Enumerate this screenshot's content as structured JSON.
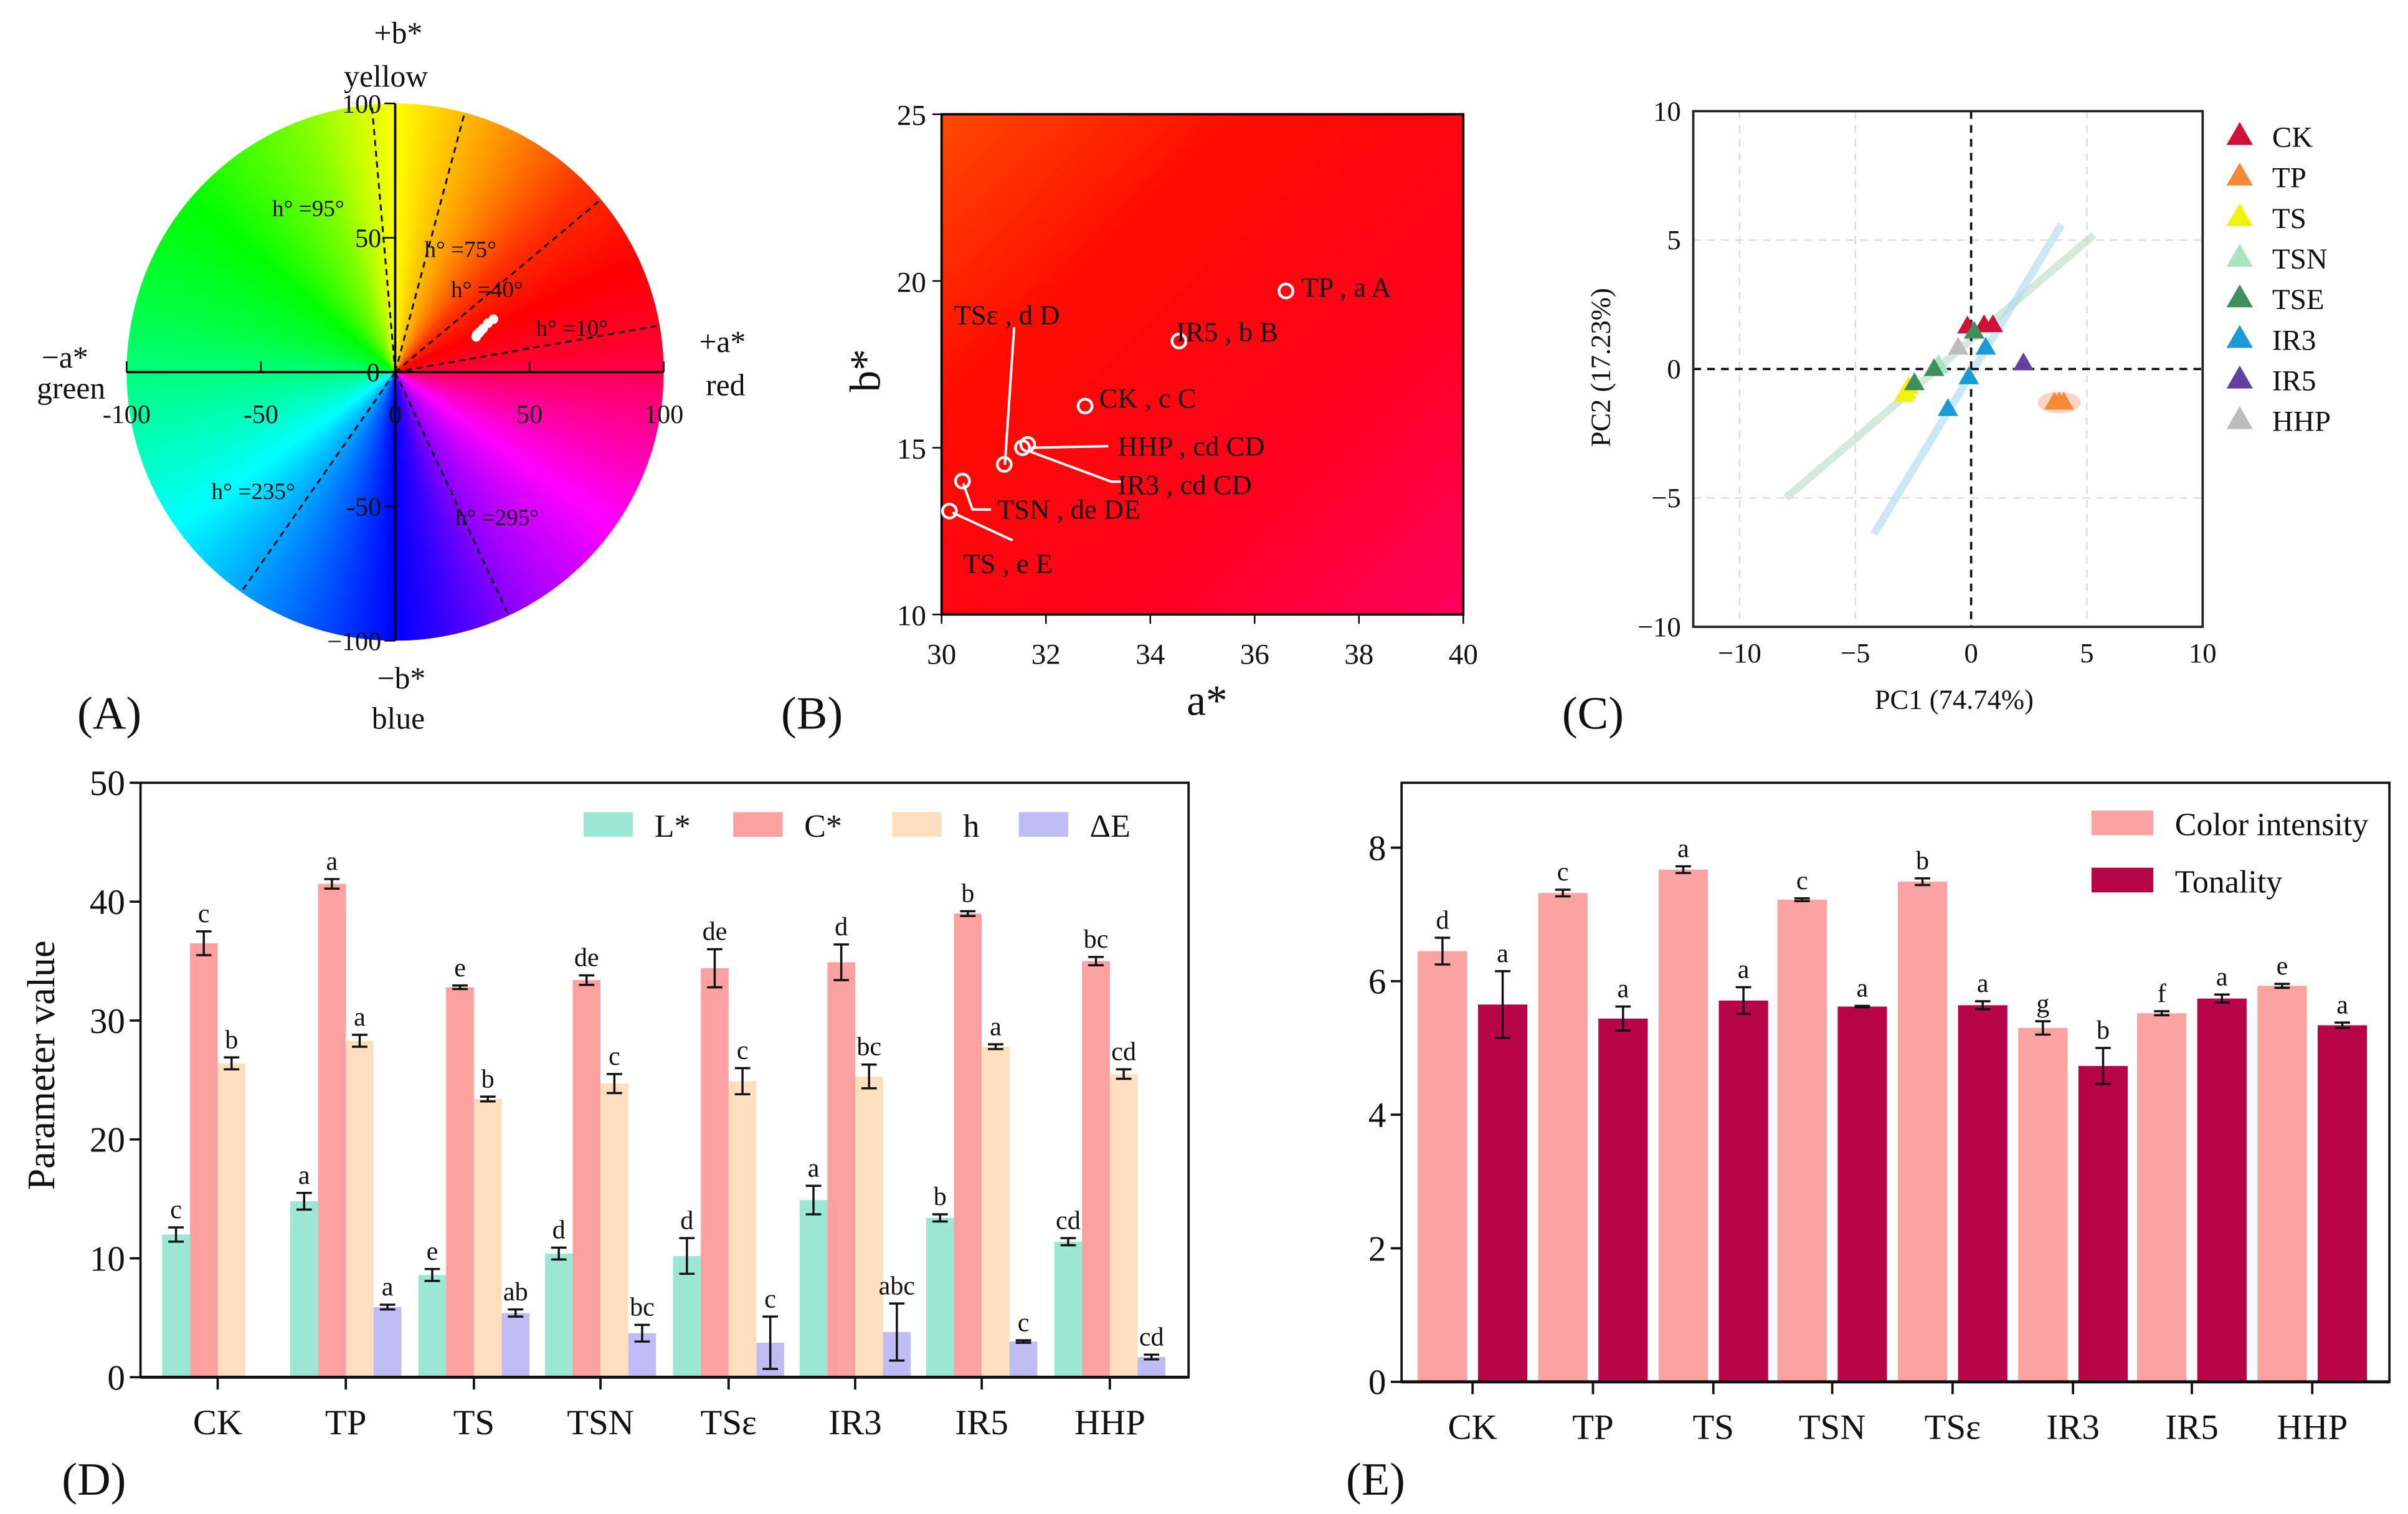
{
  "panel_labels": {
    "A": "(A)",
    "B": "(B)",
    "C": "(C)",
    "D": "(D)",
    "E": "(E)"
  },
  "chart_data": [
    {
      "type": "scatter",
      "panel": "A",
      "title": "CIELAB color wheel",
      "axis_labels": {
        "pos_b": "+b*",
        "pos_b_name": "yellow",
        "neg_a": "−a*",
        "neg_a_name": "green",
        "pos_a": "+a*",
        "pos_a_name": "red",
        "neg_b": "−b*",
        "neg_b_name": "blue"
      },
      "xlim": [
        -100,
        100
      ],
      "ylim": [
        -100,
        100
      ],
      "xticks": [
        -100,
        -50,
        0,
        50,
        100
      ],
      "yticks": [
        -100,
        -50,
        0,
        50,
        100
      ],
      "hue_lines": [
        {
          "angle": 10,
          "label": "h°  =10°"
        },
        {
          "angle": 40,
          "label": "h°  =40°"
        },
        {
          "angle": 75,
          "label": "h°  =75°"
        },
        {
          "angle": 95,
          "label": "h°  =95°"
        },
        {
          "angle": 235,
          "label": "h°  =235°"
        },
        {
          "angle": 295,
          "label": "h°  =295°"
        }
      ]
    },
    {
      "type": "scatter",
      "panel": "B",
      "xlabel": "a*",
      "ylabel": "b*",
      "xlim": [
        30,
        40
      ],
      "ylim": [
        10,
        25
      ],
      "xticks": [
        30,
        32,
        34,
        36,
        38,
        40
      ],
      "yticks": [
        10,
        15,
        20,
        25
      ],
      "points": [
        {
          "label": "TP , a A",
          "a": 36.6,
          "b": 19.7
        },
        {
          "label": "IR5 , b B",
          "a": 34.55,
          "b": 18.2
        },
        {
          "label": "CK , c C",
          "a": 32.75,
          "b": 16.25
        },
        {
          "label": "HHP , cd CD",
          "a": 31.65,
          "b": 15.1
        },
        {
          "label": "IR3 , cd CD",
          "a": 31.55,
          "b": 15.0
        },
        {
          "label": "TSε , d D",
          "a": 31.2,
          "b": 14.5
        },
        {
          "label": "TSN , de DE",
          "a": 30.4,
          "b": 14.0
        },
        {
          "label": "TS , e E",
          "a": 30.15,
          "b": 13.1
        }
      ]
    },
    {
      "type": "scatter",
      "panel": "C",
      "xlabel": "PC1 (74.74%)",
      "ylabel": "PC2 (17.23%)",
      "xlim": [
        -12,
        10
      ],
      "ylim": [
        -10,
        10
      ],
      "xticks": [
        -10,
        -5,
        0,
        5,
        10
      ],
      "yticks": [
        -10,
        -5,
        0,
        5,
        10
      ],
      "grid": true,
      "legend": "right",
      "series": [
        {
          "name": "CK",
          "color": "#d0103a",
          "x": [
            -0.16,
            0.56,
            0.94
          ],
          "y": [
            1.65,
            1.7,
            1.7
          ]
        },
        {
          "name": "TP",
          "color": "#f5893a",
          "x": [
            3.6,
            3.8,
            4.0
          ],
          "y": [
            -1.3,
            -1.3,
            -1.3
          ]
        },
        {
          "name": "TS",
          "color": "#f2f20a",
          "x": [
            -2.9,
            -2.8,
            -2.7
          ],
          "y": [
            -1.0,
            -0.9,
            -0.7
          ]
        },
        {
          "name": "TSN",
          "color": "#a8e6c0",
          "x": [
            -1.4,
            -1.45
          ],
          "y": [
            0.15,
            0.1
          ]
        },
        {
          "name": "TSE",
          "color": "#3e8e5e",
          "x": [
            -2.45,
            -1.6,
            0.13
          ],
          "y": [
            -0.55,
            0.0,
            1.45
          ]
        },
        {
          "name": "IR3",
          "color": "#1a9bd7",
          "x": [
            0.63,
            -0.1,
            -1.0
          ],
          "y": [
            0.83,
            -0.32,
            -1.55
          ]
        },
        {
          "name": "IR5",
          "color": "#6440a0",
          "x": [
            2.26
          ],
          "y": [
            0.22
          ]
        },
        {
          "name": "HHP",
          "color": "#bdbdbd",
          "x": [
            -0.56
          ],
          "y": [
            0.83
          ]
        }
      ]
    },
    {
      "type": "bar",
      "panel": "D",
      "ylabel": "Parameter value",
      "ylim": [
        0,
        50
      ],
      "yticks": [
        0,
        10,
        20,
        30,
        40,
        50
      ],
      "legend": "top-right",
      "categories": [
        "CK",
        "TP",
        "TS",
        "TSN",
        "TSε",
        "IR3",
        "IR5",
        "HHP"
      ],
      "series": [
        {
          "name": "L*",
          "color": "#9de8d4",
          "values": [
            12.0,
            14.8,
            8.6,
            10.4,
            10.2,
            14.9,
            13.4,
            11.4
          ],
          "errors": [
            0.6,
            0.7,
            0.5,
            0.5,
            1.5,
            1.2,
            0.3,
            0.3
          ],
          "letters": [
            "c",
            "a",
            "e",
            "d",
            "d",
            "a",
            "b",
            "cd"
          ]
        },
        {
          "name": "C*",
          "color": "#fca0a0",
          "values": [
            36.5,
            41.5,
            32.8,
            33.4,
            34.4,
            34.9,
            39.0,
            35.0
          ],
          "errors": [
            1.0,
            0.4,
            0.15,
            0.4,
            1.6,
            1.5,
            0.2,
            0.35
          ],
          "letters": [
            "c",
            "a",
            "e",
            "de",
            "de",
            "d",
            "b",
            "bc"
          ]
        },
        {
          "name": "h",
          "color": "#fddfc0",
          "values": [
            26.4,
            28.3,
            23.4,
            24.7,
            24.9,
            25.3,
            27.8,
            25.5
          ],
          "errors": [
            0.5,
            0.5,
            0.2,
            0.8,
            1.1,
            1.0,
            0.2,
            0.4
          ],
          "letters": [
            "b",
            "a",
            "b",
            "c",
            "c",
            "bc",
            "a",
            "cd"
          ]
        },
        {
          "name": "ΔE",
          "color": "#c0bcf5",
          "values": [
            0,
            5.9,
            5.4,
            3.7,
            2.9,
            3.8,
            3.0,
            1.7
          ],
          "errors": [
            0,
            0.2,
            0.3,
            0.7,
            2.2,
            2.4,
            0.1,
            0.2
          ],
          "letters": [
            "",
            "a",
            "ab",
            "bc",
            "c",
            "abc",
            "c",
            "cd"
          ]
        }
      ]
    },
    {
      "type": "bar",
      "panel": "E",
      "ylim": [
        0,
        9
      ],
      "yticks": [
        0,
        2,
        4,
        6,
        8
      ],
      "legend": "top-right",
      "categories": [
        "CK",
        "TP",
        "TS",
        "TSN",
        "TSε",
        "IR3",
        "IR5",
        "HHP"
      ],
      "series": [
        {
          "name": "Color intensity",
          "color": "#fba3a3",
          "values": [
            6.45,
            7.32,
            7.67,
            7.22,
            7.49,
            5.3,
            5.52,
            5.93
          ],
          "errors": [
            0.2,
            0.05,
            0.05,
            0.02,
            0.05,
            0.1,
            0.03,
            0.03
          ],
          "letters": [
            "d",
            "c",
            "a",
            "c",
            "b",
            "g",
            "f",
            "e"
          ]
        },
        {
          "name": "Tonality",
          "color": "#b80548",
          "values": [
            5.65,
            5.44,
            5.71,
            5.62,
            5.64,
            4.73,
            5.74,
            5.34
          ],
          "errors": [
            0.5,
            0.18,
            0.2,
            0.01,
            0.06,
            0.27,
            0.06,
            0.04
          ],
          "letters": [
            "a",
            "a",
            "a",
            "a",
            "a",
            "b",
            "a",
            "a"
          ]
        }
      ]
    }
  ]
}
